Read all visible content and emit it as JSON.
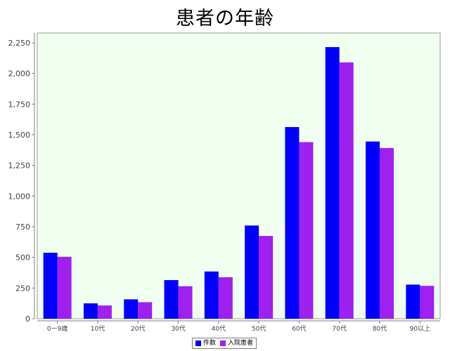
{
  "chart_data": {
    "type": "bar",
    "title": "患者の年齢",
    "categories": [
      "0ー9歳",
      "10代",
      "20代",
      "30代",
      "40代",
      "50代",
      "60代",
      "70代",
      "80代",
      "90以上"
    ],
    "series": [
      {
        "name": "件数",
        "color": "#0000ff",
        "values": [
          538,
          125,
          158,
          315,
          385,
          760,
          1563,
          2215,
          1445,
          278
        ]
      },
      {
        "name": "入院患者",
        "color": "#a020f0",
        "values": [
          505,
          108,
          135,
          265,
          338,
          675,
          1440,
          2090,
          1392,
          268
        ]
      }
    ],
    "yticks": [
      0,
      250,
      500,
      750,
      1000,
      1250,
      1500,
      1750,
      2000,
      2250
    ],
    "ylim": [
      0,
      2330
    ],
    "grid": false,
    "plot_background": "#f0fff0",
    "legend_position": "bottom-center"
  }
}
